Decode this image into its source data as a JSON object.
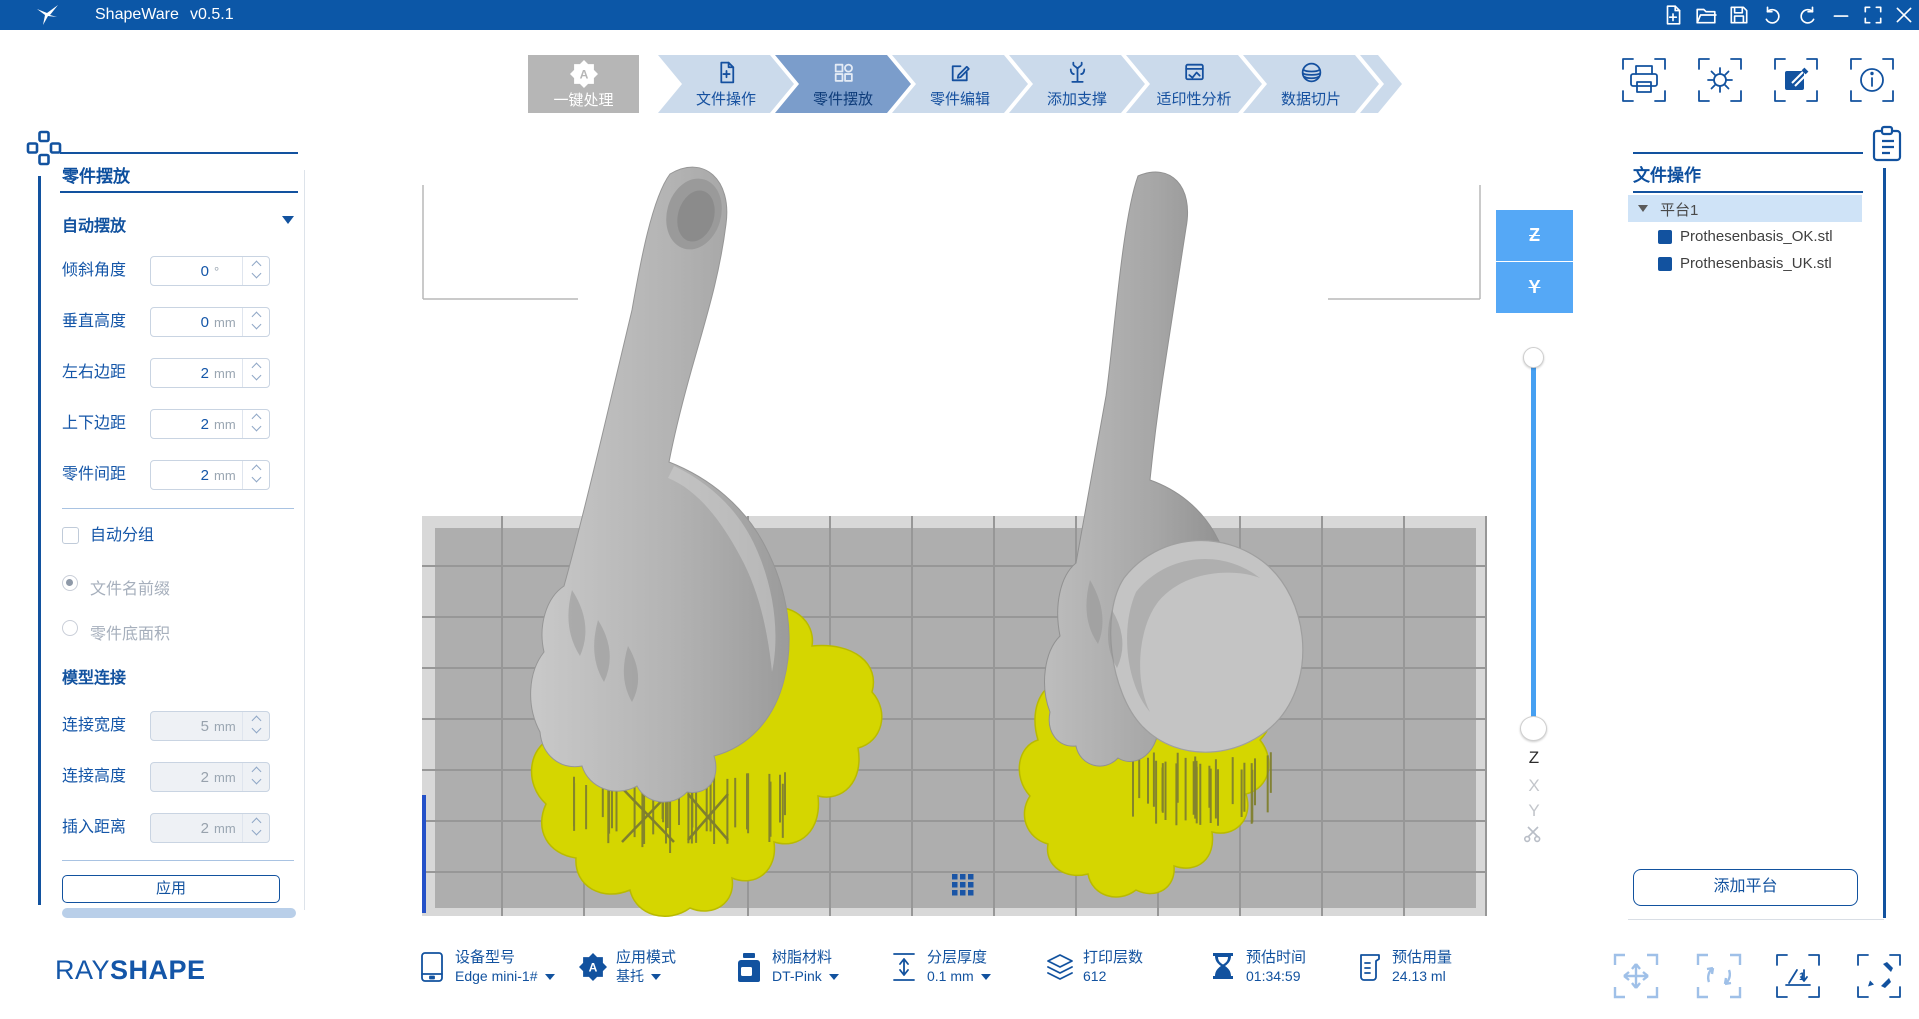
{
  "titlebar": {
    "app": "ShapeWare",
    "version": "v0.5.1"
  },
  "workflow": {
    "one_click": "一键处理",
    "steps": [
      {
        "label": "文件操作",
        "active": false
      },
      {
        "label": "零件摆放",
        "active": true
      },
      {
        "label": "零件编辑",
        "active": false
      },
      {
        "label": "添加支撑",
        "active": false
      },
      {
        "label": "适印性分析",
        "active": false
      },
      {
        "label": "数据切片",
        "active": false
      }
    ]
  },
  "sidebar": {
    "title": "零件摆放",
    "auto_place_label": "自动摆放",
    "fields": [
      {
        "label": "倾斜角度",
        "value": "0",
        "unit": "°"
      },
      {
        "label": "垂直高度",
        "value": "0",
        "unit": "mm"
      },
      {
        "label": "左右边距",
        "value": "2",
        "unit": "mm"
      },
      {
        "label": "上下边距",
        "value": "2",
        "unit": "mm"
      },
      {
        "label": "零件间距",
        "value": "2",
        "unit": "mm"
      }
    ],
    "auto_group_label": "自动分组",
    "radio_options": [
      {
        "label": "文件名前缀",
        "selected": true
      },
      {
        "label": "零件底面积",
        "selected": false
      }
    ],
    "model_connect_title": "模型连接",
    "connect_fields": [
      {
        "label": "连接宽度",
        "value": "5",
        "unit": "mm"
      },
      {
        "label": "连接高度",
        "value": "2",
        "unit": "mm"
      },
      {
        "label": "插入距离",
        "value": "2",
        "unit": "mm"
      }
    ],
    "apply_label": "应用"
  },
  "viewport": {
    "flip_buttons": {
      "z": "Z",
      "y": "Y"
    },
    "axis_labels": {
      "z": "Z",
      "x": "X",
      "y": "Y"
    }
  },
  "right_panel": {
    "title": "文件操作",
    "platform_label": "平台1",
    "files": [
      "Prothesenbasis_OK.stl",
      "Prothesenbasis_UK.stl"
    ],
    "add_platform_label": "添加平台"
  },
  "statusbar": {
    "brand_light": "RAY",
    "brand_bold": "SHAPE",
    "items": [
      {
        "label": "设备型号",
        "value": "Edge mini-1#"
      },
      {
        "label": "应用模式",
        "value": "基托"
      },
      {
        "label": "树脂材料",
        "value": "DT-Pink"
      },
      {
        "label": "分层厚度",
        "value": "0.1 mm"
      },
      {
        "label": "打印层数",
        "value": "612"
      },
      {
        "label": "预估时间",
        "value": "01:34:59"
      },
      {
        "label": "预估用量",
        "value": "24.13 ml"
      }
    ]
  },
  "colors": {
    "titlebar_blue": "#0c57a7",
    "accent_blue": "#12529f",
    "step_inactive": "#cbdaeb",
    "step_active": "#7b9dcb",
    "flip_button_blue": "#55a8f6",
    "raft_yellow": "#d5d600",
    "plate_gray": "#aeaeae",
    "selected_row": "#cfe3f7"
  }
}
